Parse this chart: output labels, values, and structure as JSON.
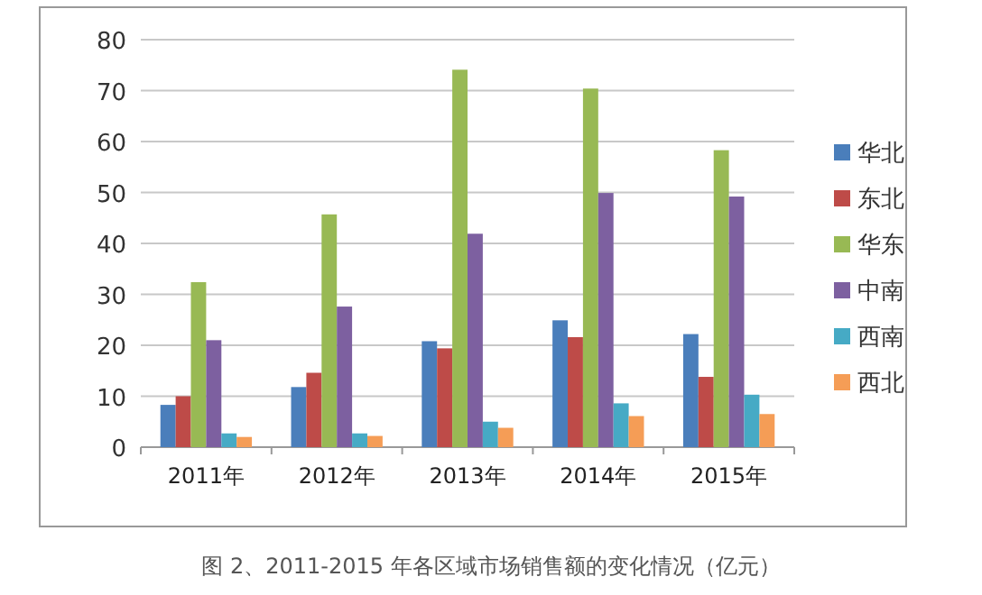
{
  "chart_data": {
    "type": "bar",
    "categories": [
      "2011年",
      "2012年",
      "2013年",
      "2014年",
      "2015年"
    ],
    "series": [
      {
        "name": "华北",
        "color": "#4a7ebb",
        "values": [
          8.3,
          11.8,
          20.8,
          24.9,
          22.2
        ]
      },
      {
        "name": "东北",
        "color": "#be4b48",
        "values": [
          10,
          14.6,
          19.4,
          21.6,
          13.8
        ]
      },
      {
        "name": "华东",
        "color": "#98b954",
        "values": [
          32.4,
          45.7,
          74.1,
          70.4,
          58.3
        ]
      },
      {
        "name": "中南",
        "color": "#7d60a0",
        "values": [
          21,
          27.6,
          41.9,
          49.9,
          49.2
        ]
      },
      {
        "name": "西南",
        "color": "#46aac5",
        "values": [
          2.7,
          2.7,
          5,
          8.6,
          10.3
        ]
      },
      {
        "name": "西北",
        "color": "#f59d56",
        "values": [
          2,
          2.2,
          3.8,
          6.1,
          6.5
        ]
      }
    ],
    "ylim": [
      0,
      80
    ],
    "yticks": [
      0,
      10,
      20,
      30,
      40,
      50,
      60,
      70,
      80
    ],
    "grid": "y",
    "legend": "right",
    "annotations": [
      "图 2、2011-2015 年各区域市场销售额的变化情况（亿元）"
    ]
  }
}
